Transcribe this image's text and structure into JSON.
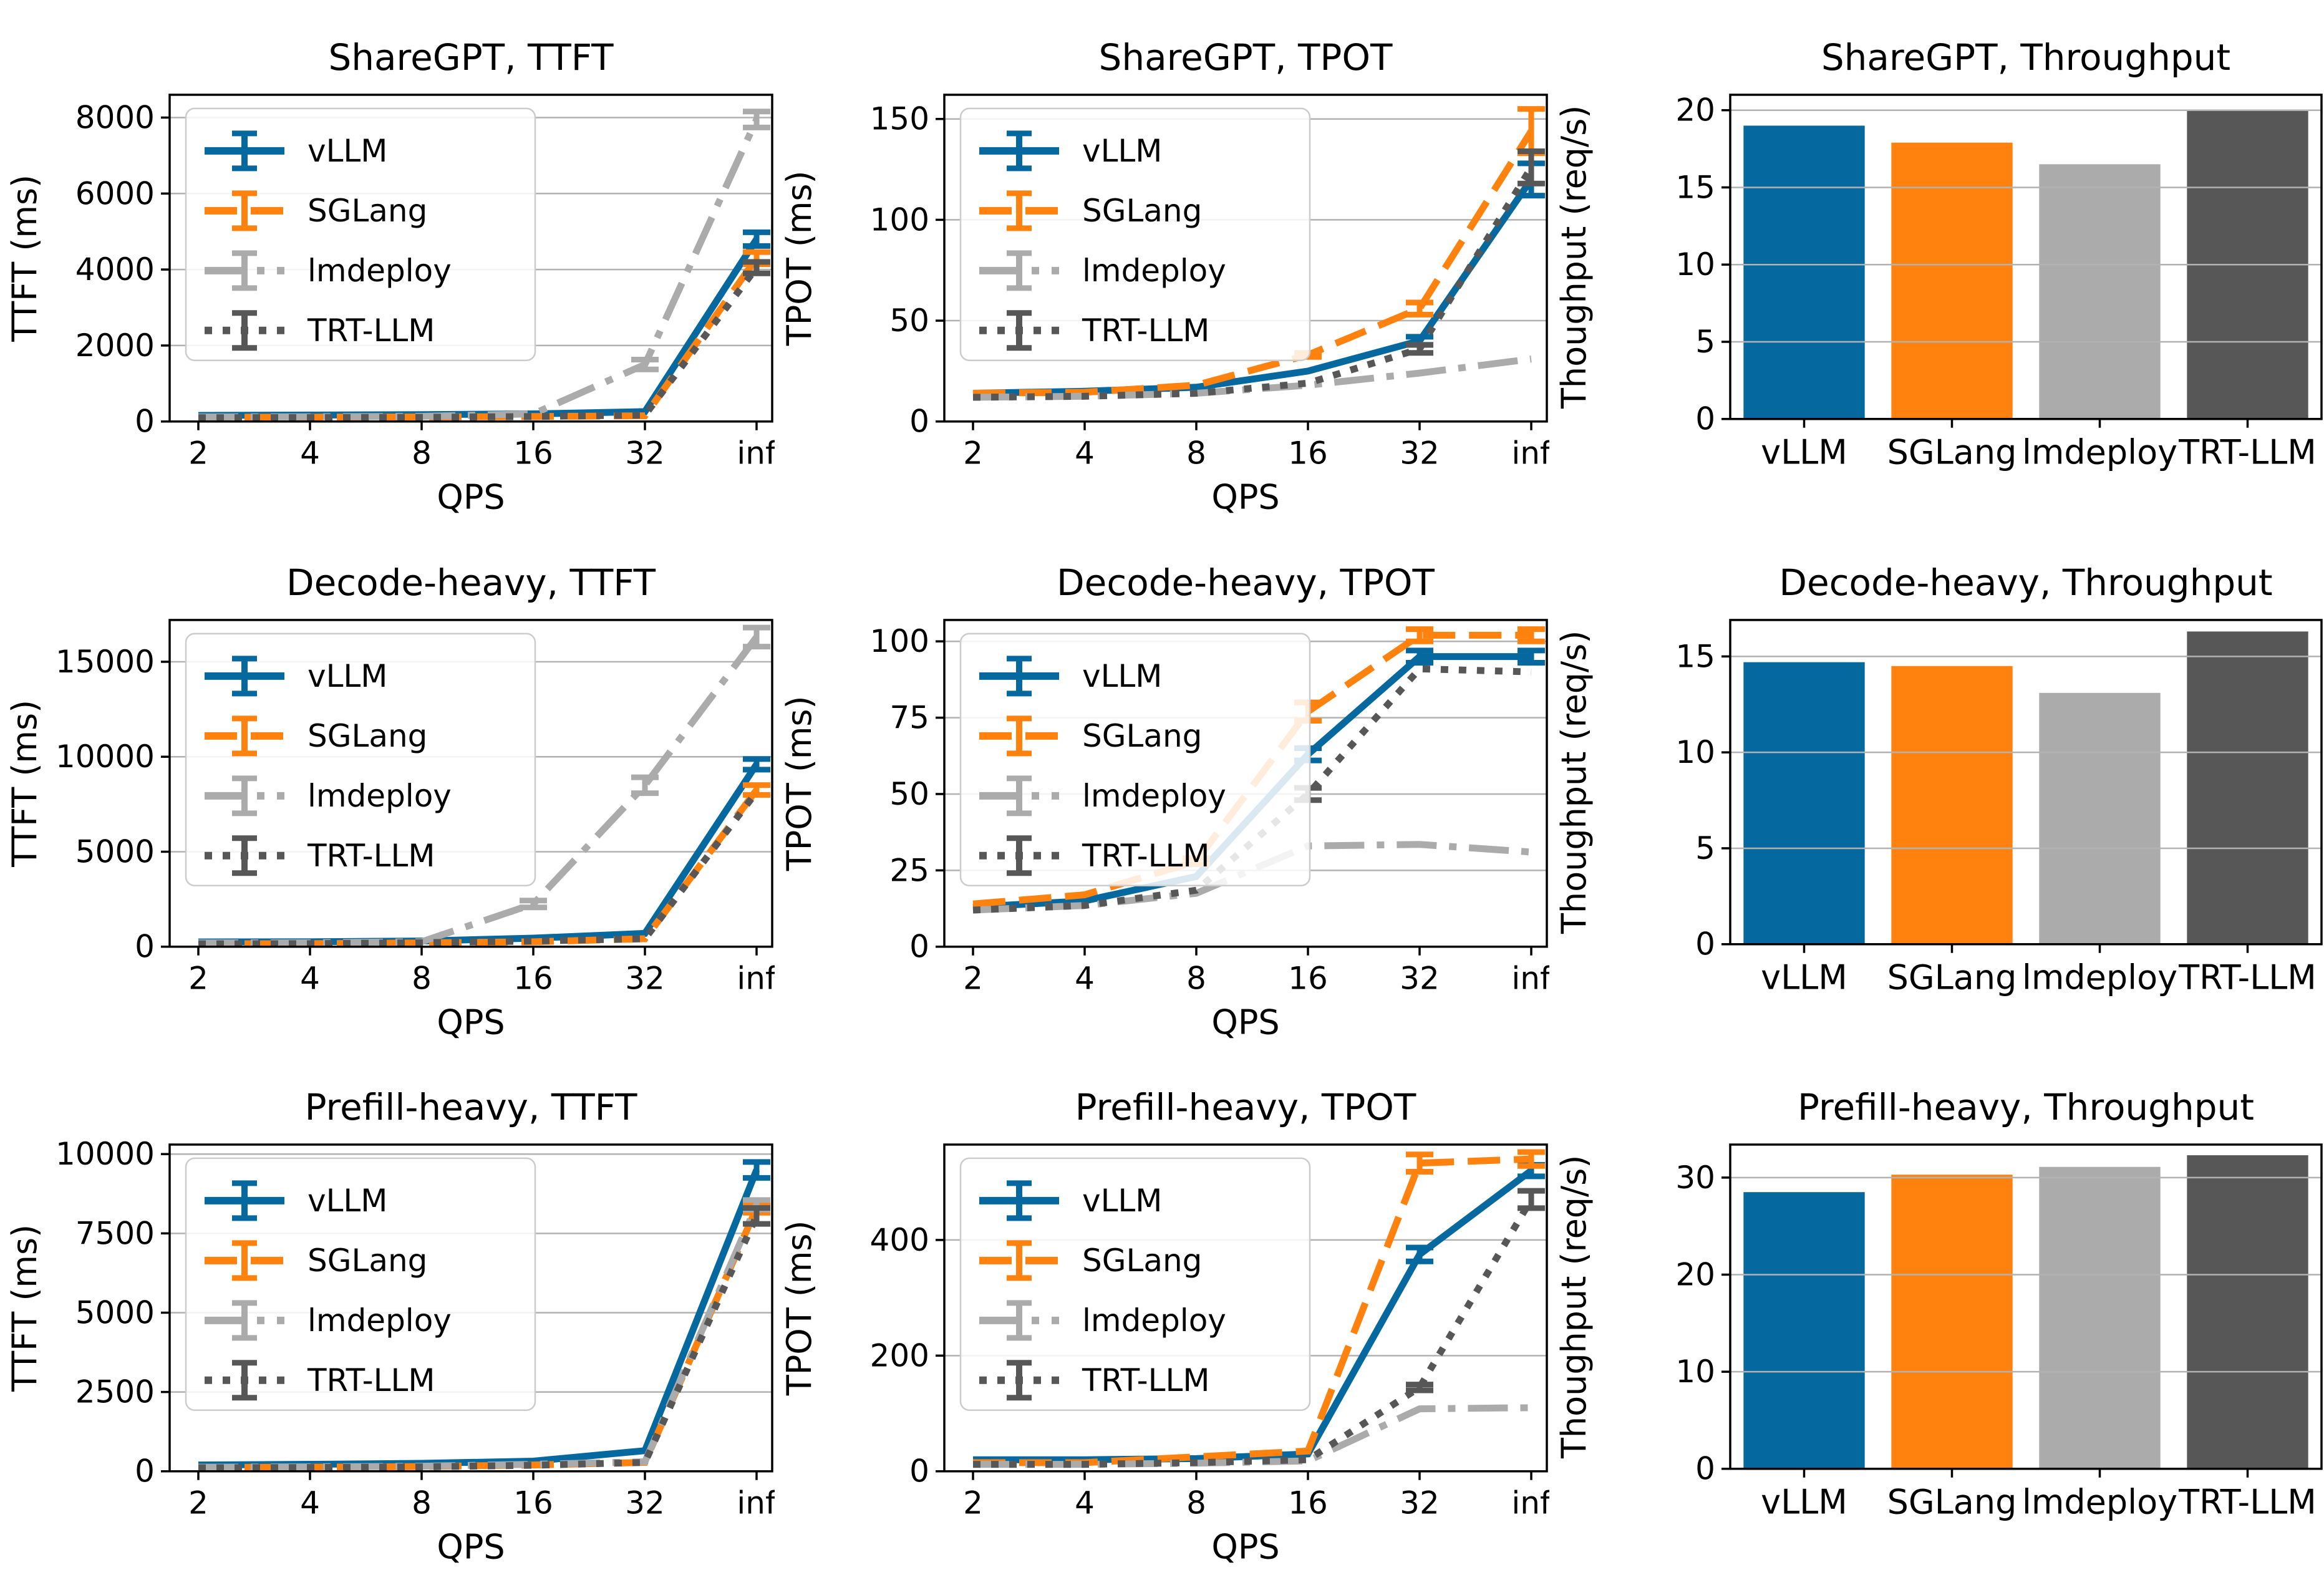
{
  "figure": {
    "background": "#ffffff",
    "grid_color": "#b2b2b2",
    "spine_color": "#000000"
  },
  "palette": {
    "vLLM": {
      "color": "#0569A0",
      "linestyle": "solid"
    },
    "SGLang": {
      "color": "#FF810E",
      "linestyle": "dashed"
    },
    "lmdeploy": {
      "color": "#ABABAB",
      "linestyle": "dashdot"
    },
    "TRT-LLM": {
      "color": "#575757",
      "linestyle": "dotted"
    }
  },
  "chart_data": [
    {
      "id": "sharegpt-ttft",
      "type": "line",
      "title": "ShareGPT, TTFT",
      "xlabel": "QPS",
      "ylabel": "TTFT (ms)",
      "x_ticklabels": [
        "2",
        "4",
        "8",
        "16",
        "32",
        "inf"
      ],
      "yticks": [
        0,
        2000,
        4000,
        6000,
        8000
      ],
      "ylim": [
        0,
        8600
      ],
      "legend": true,
      "grid": true,
      "legend_position": "upper-left",
      "series": [
        {
          "name": "vLLM",
          "values": [
            160,
            170,
            180,
            200,
            260,
            4800
          ],
          "yerr": [
            0,
            0,
            0,
            0,
            0,
            180
          ]
        },
        {
          "name": "SGLang",
          "values": [
            110,
            115,
            120,
            130,
            150,
            4300
          ],
          "yerr": [
            0,
            0,
            0,
            0,
            0,
            160
          ]
        },
        {
          "name": "lmdeploy",
          "values": [
            120,
            125,
            135,
            200,
            1500,
            7950
          ],
          "yerr": [
            0,
            0,
            0,
            0,
            130,
            210
          ]
        },
        {
          "name": "TRT-LLM",
          "values": [
            100,
            105,
            110,
            130,
            170,
            4050
          ],
          "yerr": [
            0,
            0,
            0,
            0,
            0,
            150
          ]
        }
      ]
    },
    {
      "id": "sharegpt-tpot",
      "type": "line",
      "title": "ShareGPT, TPOT",
      "xlabel": "QPS",
      "ylabel": "TPOT (ms)",
      "x_ticklabels": [
        "2",
        "4",
        "8",
        "16",
        "32",
        "inf"
      ],
      "yticks": [
        0,
        50,
        100,
        150
      ],
      "ylim": [
        0,
        162
      ],
      "legend": true,
      "grid": true,
      "legend_position": "upper-left",
      "series": [
        {
          "name": "vLLM",
          "values": [
            14,
            15,
            17,
            25,
            40,
            120
          ],
          "yerr": [
            0,
            0,
            0,
            0,
            2,
            8
          ]
        },
        {
          "name": "SGLang",
          "values": [
            14,
            14.5,
            18,
            33,
            56,
            144
          ],
          "yerr": [
            0,
            0,
            0,
            1,
            3,
            11
          ]
        },
        {
          "name": "lmdeploy",
          "values": [
            12,
            12.5,
            14,
            18,
            24,
            31
          ],
          "yerr": [
            0,
            0,
            0,
            0,
            0,
            0
          ]
        },
        {
          "name": "TRT-LLM",
          "values": [
            12,
            12.5,
            14,
            19,
            36,
            126
          ],
          "yerr": [
            0,
            0,
            0,
            0,
            2,
            8
          ]
        }
      ]
    },
    {
      "id": "sharegpt-throughput",
      "type": "bar",
      "title": "ShareGPT, Throughput",
      "xlabel": "",
      "ylabel": "Thoughput (req/s)",
      "categories": [
        "vLLM",
        "SGLang",
        "lmdeploy",
        "TRT-LLM"
      ],
      "values": [
        19.0,
        17.9,
        16.5,
        20.0
      ],
      "yticks": [
        0,
        5,
        10,
        15,
        20
      ],
      "ylim": [
        0,
        21
      ],
      "grid": true
    },
    {
      "id": "decode-heavy-ttft",
      "type": "line",
      "title": "Decode-heavy, TTFT",
      "xlabel": "QPS",
      "ylabel": "TTFT (ms)",
      "x_ticklabels": [
        "2",
        "4",
        "8",
        "16",
        "32",
        "inf"
      ],
      "yticks": [
        0,
        5000,
        10000,
        15000
      ],
      "ylim": [
        0,
        17200
      ],
      "legend": true,
      "grid": true,
      "legend_position": "upper-left",
      "series": [
        {
          "name": "vLLM",
          "values": [
            250,
            260,
            300,
            450,
            700,
            9600
          ],
          "yerr": [
            0,
            0,
            0,
            0,
            0,
            280
          ]
        },
        {
          "name": "SGLang",
          "values": [
            150,
            160,
            200,
            260,
            420,
            8250
          ],
          "yerr": [
            0,
            0,
            0,
            0,
            0,
            260
          ]
        },
        {
          "name": "lmdeploy",
          "values": [
            200,
            210,
            260,
            2250,
            8500,
            16300
          ],
          "yerr": [
            0,
            0,
            0,
            180,
            420,
            500
          ]
        },
        {
          "name": "TRT-LLM",
          "values": [
            150,
            160,
            210,
            300,
            420,
            8150
          ],
          "yerr": [
            0,
            0,
            0,
            0,
            0,
            0
          ]
        }
      ]
    },
    {
      "id": "decode-heavy-tpot",
      "type": "line",
      "title": "Decode-heavy, TPOT",
      "xlabel": "QPS",
      "ylabel": "TPOT (ms)",
      "x_ticklabels": [
        "2",
        "4",
        "8",
        "16",
        "32",
        "inf"
      ],
      "yticks": [
        0,
        25,
        50,
        75,
        100
      ],
      "ylim": [
        0,
        107
      ],
      "legend": true,
      "grid": true,
      "legend_position": "upper-left",
      "series": [
        {
          "name": "vLLM",
          "values": [
            13,
            15,
            23,
            63,
            95,
            95
          ],
          "yerr": [
            0,
            0,
            0,
            2,
            2,
            2
          ]
        },
        {
          "name": "SGLang",
          "values": [
            14,
            17,
            28,
            77,
            102,
            102
          ],
          "yerr": [
            0,
            0,
            1,
            3,
            2,
            2
          ]
        },
        {
          "name": "lmdeploy",
          "values": [
            12,
            13.5,
            17.5,
            33,
            33.5,
            31
          ],
          "yerr": [
            0,
            0,
            0,
            0,
            0,
            0
          ]
        },
        {
          "name": "TRT-LLM",
          "values": [
            12,
            13.5,
            18.5,
            50,
            91,
            90
          ],
          "yerr": [
            0,
            0,
            0,
            2,
            0,
            0
          ]
        }
      ]
    },
    {
      "id": "decode-heavy-throughput",
      "type": "bar",
      "title": "Decode-heavy, Throughput",
      "xlabel": "",
      "ylabel": "Thoughput (req/s)",
      "categories": [
        "vLLM",
        "SGLang",
        "lmdeploy",
        "TRT-LLM"
      ],
      "values": [
        14.7,
        14.5,
        13.1,
        16.3
      ],
      "yticks": [
        0,
        5,
        10,
        15
      ],
      "ylim": [
        0,
        16.9
      ],
      "grid": true
    },
    {
      "id": "prefill-heavy-ttft",
      "type": "line",
      "title": "Prefill-heavy, TTFT",
      "xlabel": "QPS",
      "ylabel": "TTFT (ms)",
      "x_ticklabels": [
        "2",
        "4",
        "8",
        "16",
        "32",
        "inf"
      ],
      "yticks": [
        0,
        2500,
        5000,
        7500,
        10000
      ],
      "ylim": [
        0,
        10300
      ],
      "legend": true,
      "grid": true,
      "legend_position": "upper-left",
      "series": [
        {
          "name": "vLLM",
          "values": [
            200,
            220,
            250,
            320,
            650,
            9500
          ],
          "yerr": [
            0,
            0,
            0,
            0,
            0,
            250
          ]
        },
        {
          "name": "SGLang",
          "values": [
            120,
            130,
            150,
            200,
            280,
            8300
          ],
          "yerr": [
            0,
            0,
            0,
            0,
            0,
            150
          ]
        },
        {
          "name": "lmdeploy",
          "values": [
            130,
            140,
            160,
            220,
            300,
            8400
          ],
          "yerr": [
            0,
            0,
            0,
            0,
            0,
            150
          ]
        },
        {
          "name": "TRT-LLM",
          "values": [
            110,
            120,
            140,
            190,
            280,
            8050
          ],
          "yerr": [
            0,
            0,
            0,
            0,
            0,
            250
          ]
        }
      ]
    },
    {
      "id": "prefill-heavy-tpot",
      "type": "line",
      "title": "Prefill-heavy, TPOT",
      "xlabel": "QPS",
      "ylabel": "TPOT (ms)",
      "x_ticklabels": [
        "2",
        "4",
        "8",
        "16",
        "32",
        "inf"
      ],
      "yticks": [
        0,
        200,
        400
      ],
      "ylim": [
        0,
        565
      ],
      "legend": true,
      "grid": true,
      "legend_position": "upper-left",
      "series": [
        {
          "name": "vLLM",
          "values": [
            20,
            20,
            22,
            30,
            375,
            520
          ],
          "yerr": [
            0,
            0,
            0,
            0,
            12,
            10
          ]
        },
        {
          "name": "SGLang",
          "values": [
            15,
            15,
            25,
            35,
            533,
            540
          ],
          "yerr": [
            0,
            0,
            0,
            0,
            15,
            12
          ]
        },
        {
          "name": "lmdeploy",
          "values": [
            12,
            12,
            14,
            18,
            108,
            110
          ],
          "yerr": [
            0,
            0,
            0,
            0,
            0,
            0
          ]
        },
        {
          "name": "TRT-LLM",
          "values": [
            12,
            12,
            15,
            20,
            145,
            470
          ],
          "yerr": [
            0,
            0,
            0,
            0,
            5,
            15
          ]
        }
      ]
    },
    {
      "id": "prefill-heavy-throughput",
      "type": "bar",
      "title": "Prefill-heavy, Throughput",
      "xlabel": "",
      "ylabel": "Thoughput (req/s)",
      "categories": [
        "vLLM",
        "SGLang",
        "lmdeploy",
        "TRT-LLM"
      ],
      "values": [
        28.5,
        30.3,
        31.1,
        32.3
      ],
      "yticks": [
        0,
        10,
        20,
        30
      ],
      "ylim": [
        0,
        33.4
      ],
      "grid": true
    }
  ]
}
